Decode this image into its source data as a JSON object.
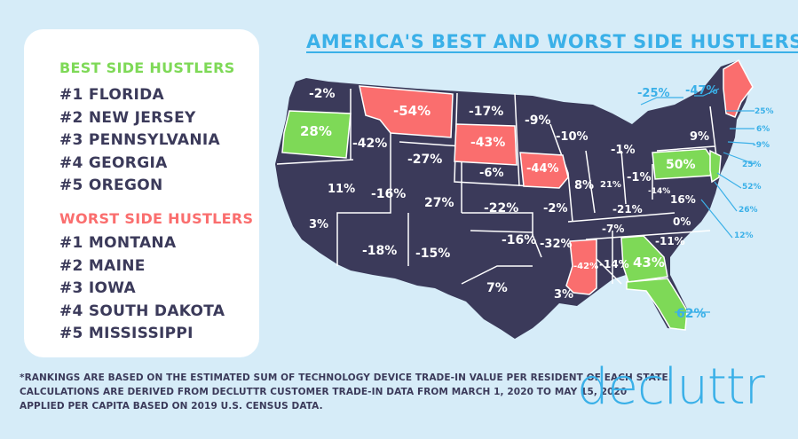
{
  "title": "AMERICA'S BEST AND WORST SIDE HUSTLERS",
  "colors": {
    "background": "#d6ecf8",
    "state_default": "#3b3a5a",
    "best": "#7ed957",
    "worst": "#fa6e6e",
    "accent": "#3ab0e8",
    "border": "#ffffff"
  },
  "legend": {
    "best_heading": "BEST SIDE HUSTLERS",
    "best": [
      "#1 FLORIDA",
      "#2 NEW JERSEY",
      "#3 PENNSYLVANIA",
      "#4 GEORGIA",
      "#5 OREGON"
    ],
    "worst_heading": "WORST SIDE HUSTLERS",
    "worst": [
      "#1 MONTANA",
      "#2 MAINE",
      "#3 IOWA",
      "#4 SOUTH DAKOTA",
      "#5 MISSISSIPPI"
    ]
  },
  "state_values": [
    {
      "state": "Washington",
      "value": "-2%",
      "category": "normal"
    },
    {
      "state": "Oregon",
      "value": "28%",
      "category": "best"
    },
    {
      "state": "Idaho",
      "value": "-42%",
      "category": "normal"
    },
    {
      "state": "Montana",
      "value": "-54%",
      "category": "worst"
    },
    {
      "state": "Wyoming",
      "value": "-27%",
      "category": "normal"
    },
    {
      "state": "North Dakota",
      "value": "-17%",
      "category": "normal"
    },
    {
      "state": "South Dakota",
      "value": "-43%",
      "category": "worst"
    },
    {
      "state": "Minnesota",
      "value": "-9%",
      "category": "normal"
    },
    {
      "state": "Wisconsin",
      "value": "-10%",
      "category": "normal"
    },
    {
      "state": "Michigan",
      "value": "-1%",
      "category": "normal"
    },
    {
      "state": "Iowa",
      "value": "-44%",
      "category": "worst"
    },
    {
      "state": "Nebraska",
      "value": "-6%",
      "category": "normal"
    },
    {
      "state": "Nevada",
      "value": "11%",
      "category": "normal"
    },
    {
      "state": "Utah",
      "value": "-16%",
      "category": "normal"
    },
    {
      "state": "Colorado",
      "value": "27%",
      "category": "normal"
    },
    {
      "state": "Kansas",
      "value": "-22%",
      "category": "normal"
    },
    {
      "state": "Missouri",
      "value": "-2%",
      "category": "normal"
    },
    {
      "state": "Illinois",
      "value": "8%",
      "category": "normal"
    },
    {
      "state": "Indiana",
      "value": "21%",
      "category": "normal"
    },
    {
      "state": "Ohio",
      "value": "-1%",
      "category": "normal"
    },
    {
      "state": "California",
      "value": "3%",
      "category": "normal"
    },
    {
      "state": "Arizona",
      "value": "-18%",
      "category": "normal"
    },
    {
      "state": "New Mexico",
      "value": "-15%",
      "category": "normal"
    },
    {
      "state": "Oklahoma",
      "value": "-16%",
      "category": "normal"
    },
    {
      "state": "Arkansas",
      "value": "-32%",
      "category": "normal"
    },
    {
      "state": "Texas",
      "value": "7%",
      "category": "normal"
    },
    {
      "state": "Louisiana",
      "value": "3%",
      "category": "normal"
    },
    {
      "state": "Mississippi",
      "value": "-42%",
      "category": "worst"
    },
    {
      "state": "Alabama",
      "value": "-14%",
      "category": "normal"
    },
    {
      "state": "Georgia",
      "value": "43%",
      "category": "best"
    },
    {
      "state": "Florida",
      "value": "62%",
      "category": "best"
    },
    {
      "state": "Tennessee",
      "value": "-7%",
      "category": "normal"
    },
    {
      "state": "Kentucky",
      "value": "-21%",
      "category": "normal"
    },
    {
      "state": "West Virginia",
      "value": "-14%",
      "category": "normal"
    },
    {
      "state": "Virginia",
      "value": "16%",
      "category": "normal"
    },
    {
      "state": "North Carolina",
      "value": "0%",
      "category": "normal"
    },
    {
      "state": "South Carolina",
      "value": "-11%",
      "category": "normal"
    },
    {
      "state": "Pennsylvania",
      "value": "50%",
      "category": "best"
    },
    {
      "state": "New York",
      "value": "9%",
      "category": "normal"
    },
    {
      "state": "Vermont",
      "value": "-25%",
      "category": "normal"
    },
    {
      "state": "Maine",
      "value": "-47%",
      "category": "worst"
    },
    {
      "state": "New Hampshire",
      "value": "25%",
      "category": "normal"
    },
    {
      "state": "Massachusetts",
      "value": "6%",
      "category": "normal"
    },
    {
      "state": "Rhode Island",
      "value": "-9%",
      "category": "normal"
    },
    {
      "state": "Connecticut",
      "value": "25%",
      "category": "normal"
    },
    {
      "state": "New Jersey",
      "value": "52%",
      "category": "best"
    },
    {
      "state": "Delaware",
      "value": "26%",
      "category": "normal"
    },
    {
      "state": "Maryland",
      "value": "12%",
      "category": "normal"
    }
  ],
  "footnote": [
    "*RANKINGS ARE BASED ON THE ESTIMATED SUM OF TECHNOLOGY DEVICE TRADE-IN VALUE PER RESIDENT OF EACH STATE.",
    "CALCULATIONS ARE DERIVED FROM DECLUTTR CUSTOMER TRADE-IN DATA FROM MARCH 1, 2020 TO MAY 15, 2020",
    "APPLIED PER CAPITA BASED ON 2019 U.S. CENSUS DATA."
  ],
  "logo": "decluttr"
}
